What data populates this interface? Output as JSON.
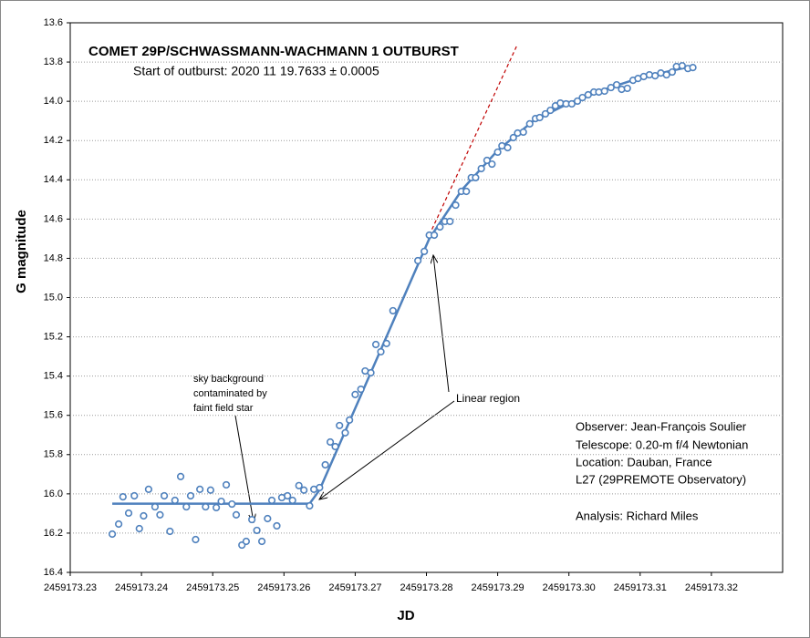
{
  "chart_data": {
    "type": "scatter",
    "title": "COMET 29P/SCHWASSMANN-WACHMANN 1 OUTBURST",
    "subtitle": "Start of outburst:   2020 11 19.7633 ± 0.0005",
    "x_label": "JD",
    "y_label": "G magnitude",
    "xlim": [
      2459173.23,
      2459173.33
    ],
    "xticks": [
      2459173.23,
      2459173.24,
      2459173.25,
      2459173.26,
      2459173.27,
      2459173.28,
      2459173.29,
      {
        "value": 2459173.3,
        "label": "2459173.30"
      },
      2459173.31,
      2459173.32
    ],
    "ylim": [
      13.6,
      16.4
    ],
    "y_inverted": true,
    "yticks": [
      13.6,
      13.8,
      {
        "value": 14.0,
        "label": "14.0"
      },
      14.2,
      14.4,
      14.6,
      14.8,
      {
        "value": 15.0,
        "label": "15.0"
      },
      15.2,
      15.4,
      15.6,
      15.8,
      {
        "value": 16.0,
        "label": "16.0"
      },
      16.2,
      16.4
    ],
    "grid": true,
    "series": [
      {
        "style": "markers",
        "color": "#4f81bd",
        "x": [
          2459173.2359,
          2459173.2368,
          2459173.2374,
          2459173.2382,
          2459173.239,
          2459173.2397,
          2459173.2403,
          2459173.241,
          2459173.2419,
          2459173.2426,
          2459173.2432,
          2459173.244,
          2459173.2447,
          2459173.2455,
          2459173.2463,
          2459173.2469,
          2459173.2476,
          2459173.2482,
          2459173.249,
          2459173.2497,
          2459173.2505,
          2459173.2512,
          2459173.2519,
          2459173.2527,
          2459173.2533,
          2459173.2541,
          2459173.2547,
          2459173.2555,
          2459173.2562,
          2459173.2569,
          2459173.2577,
          2459173.2583,
          2459173.259,
          2459173.2597,
          2459173.2605,
          2459173.2612,
          2459173.2621,
          2459173.2628,
          2459173.2636,
          2459173.2642,
          2459173.265,
          2459173.2658,
          2459173.2665,
          2459173.2672,
          2459173.2678,
          2459173.2686,
          2459173.2692,
          2459173.27,
          2459173.2708,
          2459173.2714,
          2459173.2722,
          2459173.2729,
          2459173.2736,
          2459173.2744,
          2459173.2753,
          2459173.2788,
          2459173.2797,
          2459173.2804,
          2459173.2811,
          2459173.2819,
          2459173.2826,
          2459173.2833,
          2459173.2841,
          2459173.2849,
          2459173.2856,
          2459173.2863,
          2459173.2869,
          2459173.2877,
          2459173.2885,
          2459173.2892,
          2459173.29,
          2459173.2906,
          2459173.2914,
          2459173.2922,
          2459173.2928,
          2459173.2936,
          2459173.2945,
          2459173.2953,
          2459173.2959,
          2459173.2967,
          2459173.2974,
          2459173.2981,
          2459173.2988,
          2459173.2996,
          2459173.3004,
          2459173.3012,
          2459173.3019,
          2459173.3027,
          2459173.3035,
          2459173.3042,
          2459173.305,
          2459173.3059,
          2459173.3067,
          2459173.3074,
          2459173.3082,
          2459173.309,
          2459173.3097,
          2459173.3105,
          2459173.3113,
          2459173.3121,
          2459173.3129,
          2459173.3137,
          2459173.3145,
          2459173.3151,
          2459173.3159,
          2459173.3167,
          2459173.3174
        ],
        "values": [
          16.205,
          16.154,
          16.015,
          16.098,
          16.01,
          16.177,
          16.112,
          15.977,
          16.066,
          16.107,
          16.01,
          16.191,
          16.033,
          15.912,
          16.066,
          16.01,
          16.233,
          15.977,
          16.066,
          15.981,
          16.07,
          16.038,
          15.954,
          16.052,
          16.107,
          16.261,
          16.242,
          16.131,
          16.186,
          16.242,
          16.126,
          16.033,
          16.163,
          16.019,
          16.01,
          16.033,
          15.958,
          15.981,
          16.061,
          15.977,
          15.968,
          15.852,
          15.736,
          15.759,
          15.652,
          15.689,
          15.624,
          15.494,
          15.467,
          15.374,
          15.383,
          15.239,
          15.276,
          15.234,
          15.067,
          14.812,
          14.765,
          14.682,
          14.682,
          14.64,
          14.612,
          14.612,
          14.529,
          14.459,
          14.459,
          14.389,
          14.389,
          14.343,
          14.301,
          14.32,
          14.259,
          14.227,
          14.236,
          14.185,
          14.162,
          14.157,
          14.115,
          14.088,
          14.083,
          14.064,
          14.046,
          14.023,
          14.009,
          14.013,
          14.013,
          13.999,
          13.981,
          13.967,
          13.953,
          13.953,
          13.948,
          13.93,
          13.916,
          13.939,
          13.934,
          13.893,
          13.884,
          13.874,
          13.865,
          13.87,
          13.856,
          13.865,
          13.851,
          13.823,
          13.819,
          13.833,
          13.828
        ]
      },
      {
        "style": "solid",
        "color": "#4f81bd",
        "x": [
          2459173.2359,
          2459173.2636,
          2459173.265,
          2459173.2804,
          2459173.285,
          2459173.29,
          2459173.295,
          2459173.3,
          2459173.305,
          2459173.31,
          2459173.3174
        ],
        "values": [
          16.05,
          16.05,
          15.98,
          14.7,
          14.45,
          14.25,
          14.1,
          14.01,
          13.94,
          13.88,
          13.82
        ]
      },
      {
        "style": "dashed",
        "color": "#c00000",
        "x": [
          2459173.2804,
          2459173.2927
        ],
        "values": [
          14.682,
          13.716
        ]
      }
    ],
    "annotations": {
      "sky": [
        "sky background",
        "contaminated by",
        "faint field star"
      ],
      "linear": "Linear region",
      "info": [
        "Observer:   Jean-François Soulier",
        "Telescope:  0.20-m f/4 Newtonian",
        "Location:    Dauban, France",
        "L27 (29PREMOTE Observatory)",
        "Analysis:  Richard Miles"
      ]
    }
  }
}
